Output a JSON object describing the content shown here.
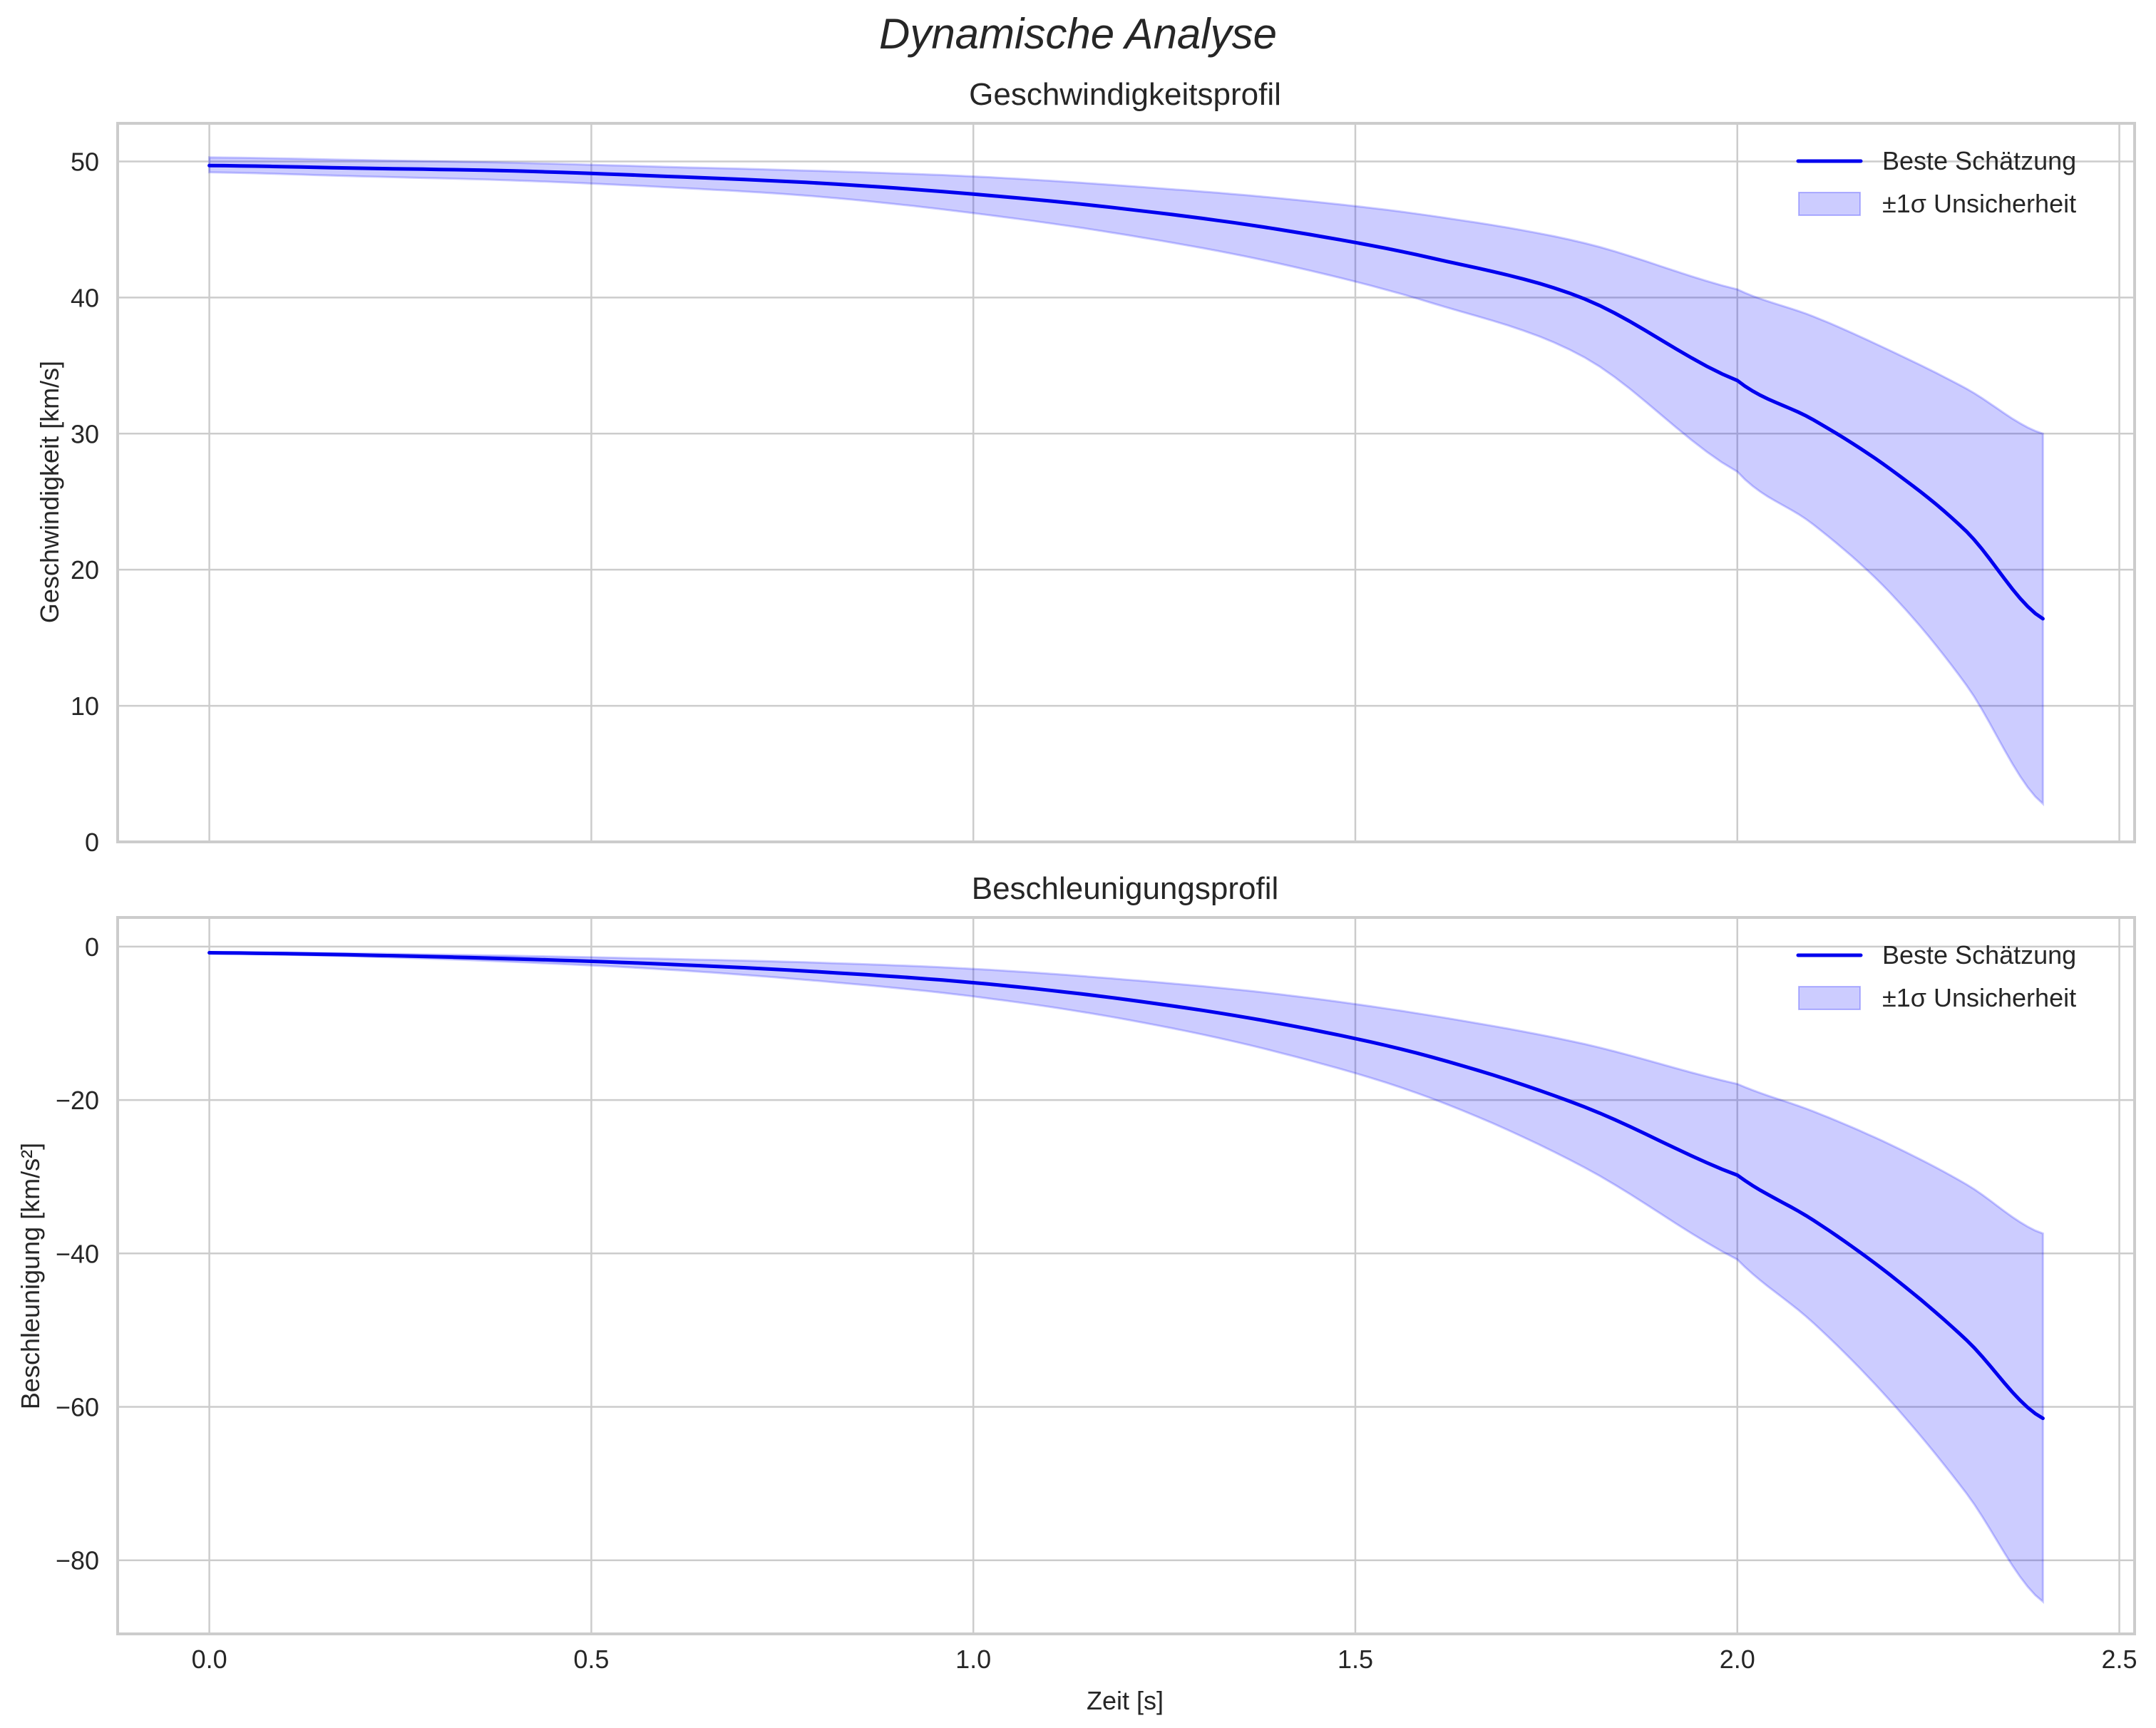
{
  "figure": {
    "suptitle": "Dynamische Analyse",
    "xlabel": "Zeit [s]"
  },
  "colors": {
    "line": "#0000ee",
    "band_fill": "#0000ff",
    "band_alpha": 0.2,
    "grid": "#cccccc",
    "spine": "#cccccc",
    "text": "#262626"
  },
  "chart_data": [
    {
      "type": "line",
      "title": "Geschwindigkeitsprofil",
      "xlabel": "",
      "ylabel": "Geschwindigkeit [km/s]",
      "xlim": [
        -0.12,
        2.52
      ],
      "ylim": [
        0,
        52.8
      ],
      "xticks": [
        0.0,
        0.5,
        1.0,
        1.5,
        2.0,
        2.5
      ],
      "xtick_labels": [
        "0.0",
        "0.5",
        "1.0",
        "1.5",
        "2.0",
        "2.5"
      ],
      "yticks": [
        0,
        10,
        20,
        30,
        40,
        50
      ],
      "ytick_labels": [
        "0",
        "10",
        "20",
        "30",
        "40",
        "50"
      ],
      "grid": true,
      "legend": {
        "position": "upper right",
        "entries": [
          "Beste Schätzung",
          "±1σ Unsicherheit"
        ]
      },
      "x": [
        0.0,
        0.2,
        0.4,
        0.6,
        0.8,
        1.0,
        1.2,
        1.4,
        1.6,
        1.8,
        2.0,
        2.1,
        2.2,
        2.3,
        2.4
      ],
      "series": [
        {
          "name": "Beste Schätzung",
          "values": [
            49.7,
            49.5,
            49.3,
            48.9,
            48.4,
            47.6,
            46.5,
            45.0,
            42.9,
            39.9,
            33.9,
            31.0,
            27.4,
            22.8,
            16.4
          ]
        },
        {
          "name": "±1σ Unsicherheit (obere Grenze)",
          "values": [
            50.3,
            50.1,
            49.9,
            49.6,
            49.3,
            48.9,
            48.2,
            47.3,
            46.0,
            44.0,
            40.6,
            38.6,
            36.1,
            33.3,
            30.0
          ]
        },
        {
          "name": "±1σ Unsicherheit (untere Grenze)",
          "values": [
            49.2,
            48.9,
            48.6,
            48.1,
            47.4,
            46.2,
            44.6,
            42.5,
            39.6,
            35.6,
            27.2,
            23.3,
            18.3,
            11.5,
            2.8
          ]
        }
      ]
    },
    {
      "type": "line",
      "title": "Beschleunigungsprofil",
      "xlabel": "Zeit [s]",
      "ylabel": "Beschleunigung [km/s²]",
      "xlim": [
        -0.12,
        2.52
      ],
      "ylim": [
        -89.6,
        3.8
      ],
      "xticks": [
        0.0,
        0.5,
        1.0,
        1.5,
        2.0,
        2.5
      ],
      "xtick_labels": [
        "0.0",
        "0.5",
        "1.0",
        "1.5",
        "2.0",
        "2.5"
      ],
      "yticks": [
        0,
        -20,
        -40,
        -60,
        -80
      ],
      "ytick_labels": [
        "0",
        "−20",
        "−40",
        "−60",
        "−80"
      ],
      "grid": true,
      "legend": {
        "position": "upper right",
        "entries": [
          "Beste Schätzung",
          "±1σ Unsicherheit"
        ]
      },
      "x": [
        0.0,
        0.2,
        0.4,
        0.6,
        0.8,
        1.0,
        1.2,
        1.4,
        1.6,
        1.8,
        2.0,
        2.1,
        2.2,
        2.3,
        2.4
      ],
      "series": [
        {
          "name": "Beste Schätzung",
          "values": [
            -0.8,
            -1.1,
            -1.6,
            -2.3,
            -3.3,
            -4.7,
            -6.9,
            -10.0,
            -14.4,
            -20.9,
            -29.8,
            -35.7,
            -42.8,
            -51.3,
            -61.5
          ]
        },
        {
          "name": "±1σ Unsicherheit (obere Grenze)",
          "values": [
            -0.7,
            -0.9,
            -1.2,
            -1.6,
            -2.1,
            -2.9,
            -4.3,
            -6.2,
            -9.0,
            -12.7,
            -17.9,
            -21.5,
            -25.8,
            -31.0,
            -37.4
          ]
        },
        {
          "name": "±1σ Unsicherheit (untere Grenze)",
          "values": [
            -0.9,
            -1.3,
            -2.0,
            -3.0,
            -4.5,
            -6.5,
            -9.5,
            -13.8,
            -19.8,
            -28.8,
            -40.8,
            -49.1,
            -59.2,
            -71.3,
            -85.4
          ]
        }
      ]
    }
  ]
}
